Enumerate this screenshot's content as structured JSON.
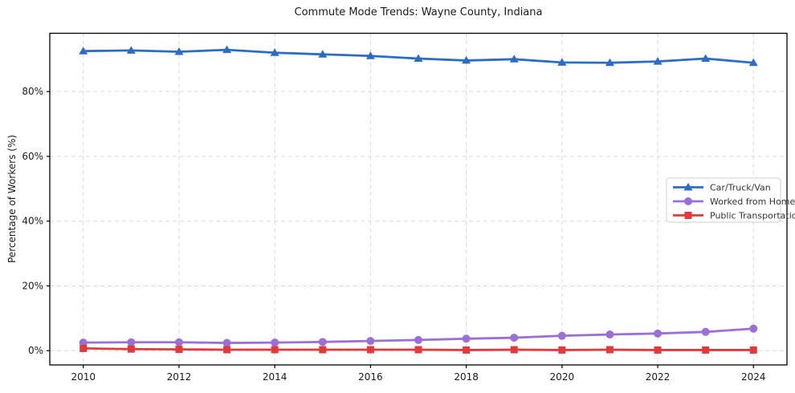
{
  "chart_data": {
    "type": "line",
    "title": "Commute Mode Trends: Wayne County, Indiana",
    "xlabel": "",
    "ylabel": "Percentage of Workers (%)",
    "x": [
      2010,
      2011,
      2012,
      2013,
      2014,
      2015,
      2016,
      2017,
      2018,
      2019,
      2020,
      2021,
      2022,
      2023,
      2024
    ],
    "series": [
      {
        "name": "Car/Truck/Van",
        "color": "#2b6cc4",
        "marker": "triangle",
        "values": [
          92.5,
          92.7,
          92.3,
          92.9,
          92.0,
          91.5,
          91.0,
          90.2,
          89.6,
          90.0,
          89.0,
          88.9,
          89.3,
          90.2,
          88.9
        ]
      },
      {
        "name": "Worked from Home",
        "color": "#9b6fd6",
        "marker": "circle",
        "values": [
          2.5,
          2.6,
          2.6,
          2.4,
          2.5,
          2.7,
          3.0,
          3.3,
          3.7,
          4.0,
          4.6,
          5.0,
          5.3,
          5.8,
          6.8
        ]
      },
      {
        "name": "Public Transportation",
        "color": "#e23a3a",
        "marker": "square",
        "values": [
          0.7,
          0.5,
          0.4,
          0.3,
          0.3,
          0.3,
          0.3,
          0.3,
          0.2,
          0.3,
          0.2,
          0.3,
          0.2,
          0.2,
          0.2
        ]
      }
    ],
    "xlim": [
      2009.3,
      2024.7
    ],
    "ylim": [
      -4.4,
      98.0
    ],
    "xticks": [
      2010,
      2012,
      2014,
      2016,
      2018,
      2020,
      2022,
      2024
    ],
    "yticks": [
      0,
      20,
      40,
      60,
      80
    ],
    "ytick_suffix": "%",
    "grid": true,
    "grid_style": "dashed",
    "legend_position": "center-right",
    "colors": {
      "spine": "#000000",
      "grid": "#d9d9d9",
      "tick_text": "#1a1a1a",
      "legend_border": "#cccccc",
      "legend_bg": "#ffffff",
      "legend_text": "#333333"
    }
  }
}
